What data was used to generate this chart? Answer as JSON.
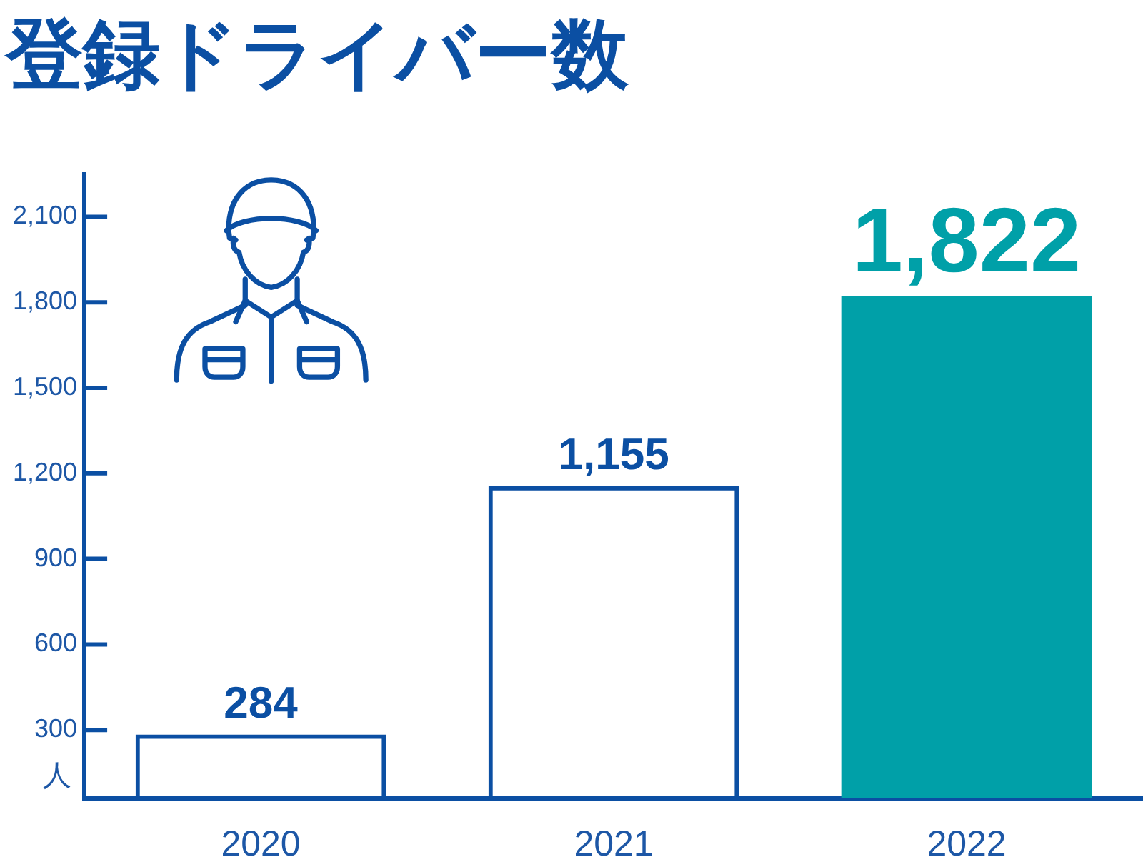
{
  "chart_data": {
    "type": "bar",
    "title": "登録ドライバー数",
    "ylabel": "人",
    "categories": [
      "2020",
      "2021",
      "2022"
    ],
    "values": [
      284,
      1155,
      1822
    ],
    "colors": [
      "#0b4fa3",
      "#0b4fa3",
      "#00a0a8"
    ],
    "value_labels": [
      "284",
      "1,155",
      "1,822"
    ],
    "ylim": [
      60,
      2250
    ],
    "yticks": [
      300,
      600,
      900,
      {
        "value": 1200,
        "label": "1,200"
      },
      {
        "value": 1500,
        "label": "1,500"
      },
      {
        "value": 1800,
        "label": "1,800"
      },
      {
        "value": 2100,
        "label": "2,100"
      }
    ]
  }
}
